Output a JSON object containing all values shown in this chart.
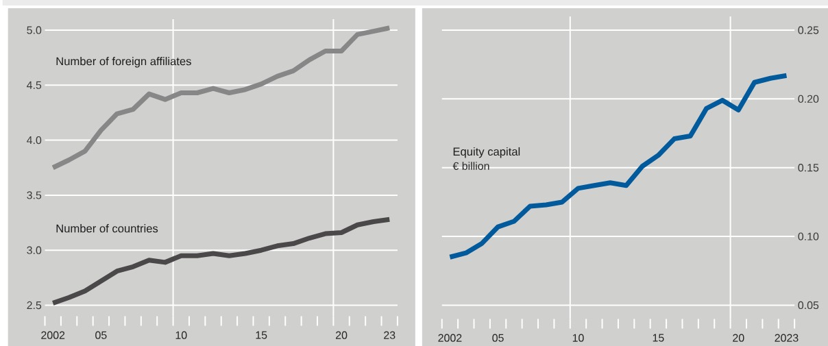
{
  "chart_data": [
    {
      "type": "line",
      "x": [
        2002,
        2003,
        2004,
        2005,
        2006,
        2007,
        2008,
        2009,
        2010,
        2011,
        2012,
        2013,
        2014,
        2015,
        2016,
        2017,
        2018,
        2019,
        2020,
        2021,
        2022,
        2023
      ],
      "series": [
        {
          "name": "Number of foreign affiliates",
          "color": "#878787",
          "values": [
            3.75,
            3.82,
            3.9,
            4.09,
            4.24,
            4.28,
            4.42,
            4.37,
            4.43,
            4.43,
            4.47,
            4.43,
            4.46,
            4.51,
            4.58,
            4.63,
            4.73,
            4.81,
            4.81,
            4.96,
            4.99,
            5.02
          ]
        },
        {
          "name": "Number of countries",
          "color": "#4a4848",
          "values": [
            2.52,
            2.57,
            2.63,
            2.72,
            2.81,
            2.85,
            2.91,
            2.89,
            2.95,
            2.95,
            2.97,
            2.95,
            2.97,
            3.0,
            3.04,
            3.06,
            3.11,
            3.15,
            3.16,
            3.23,
            3.26,
            3.28
          ]
        }
      ],
      "xlim": [
        2001.5,
        2023.5
      ],
      "xticks": [
        {
          "value": 2002,
          "label": "2002"
        },
        {
          "value": 2005,
          "label": "05"
        },
        {
          "value": 2010,
          "label": "10"
        },
        {
          "value": 2015,
          "label": "15"
        },
        {
          "value": 2020,
          "label": "20"
        },
        {
          "value": 2023,
          "label": "23"
        }
      ],
      "ylim": [
        2.4,
        5.1
      ],
      "yticks": [
        {
          "value": 2.5,
          "label": "2.5"
        },
        {
          "value": 3,
          "label": "3.0"
        },
        {
          "value": 3.5,
          "label": "3.5"
        },
        {
          "value": 4,
          "label": "4.0"
        },
        {
          "value": 4.5,
          "label": "4.5"
        },
        {
          "value": 5,
          "label": "5.0"
        }
      ],
      "grid": "y",
      "ref_lines": [
        {
          "axis": "x",
          "value": 2009.5,
          "color": "#ffffff"
        },
        {
          "axis": "x",
          "value": 2019.5,
          "color": "#ffffff"
        }
      ]
    },
    {
      "type": "line",
      "x": [
        2002,
        2003,
        2004,
        2005,
        2006,
        2007,
        2008,
        2009,
        2010,
        2011,
        2012,
        2013,
        2014,
        2015,
        2016,
        2017,
        2018,
        2019,
        2020,
        2021,
        2022,
        2023
      ],
      "series": [
        {
          "name": "Equity capital",
          "color": "#005a9c",
          "axis": "y2",
          "values": [
            0.085,
            0.088,
            0.095,
            0.107,
            0.111,
            0.122,
            0.123,
            0.125,
            0.135,
            0.137,
            0.139,
            0.137,
            0.151,
            0.159,
            0.171,
            0.173,
            0.193,
            0.199,
            0.192,
            0.212,
            0.215,
            0.217
          ]
        }
      ],
      "y2label": "€ billion",
      "xlim": [
        2001.5,
        2023.5
      ],
      "xticks": [
        {
          "value": 2002,
          "label": "2002"
        },
        {
          "value": 2005,
          "label": "05"
        },
        {
          "value": 2010,
          "label": "10"
        },
        {
          "value": 2015,
          "label": "15"
        },
        {
          "value": 2020,
          "label": "20"
        },
        {
          "value": 2023,
          "label": "2023"
        }
      ],
      "y2lim": [
        0.04,
        0.26
      ],
      "y2ticks": [
        {
          "value": 0.05,
          "label": "0.05"
        },
        {
          "value": 0.1,
          "label": "0.10"
        },
        {
          "value": 0.15,
          "label": "0.15"
        },
        {
          "value": 0.2,
          "label": "0.20"
        },
        {
          "value": 0.25,
          "label": "0.25"
        }
      ],
      "grid": "y",
      "ref_lines": [
        {
          "axis": "x",
          "value": 2009.5,
          "color": "#ffffff"
        },
        {
          "axis": "x",
          "value": 2019.5,
          "color": "#ffffff"
        }
      ]
    }
  ]
}
